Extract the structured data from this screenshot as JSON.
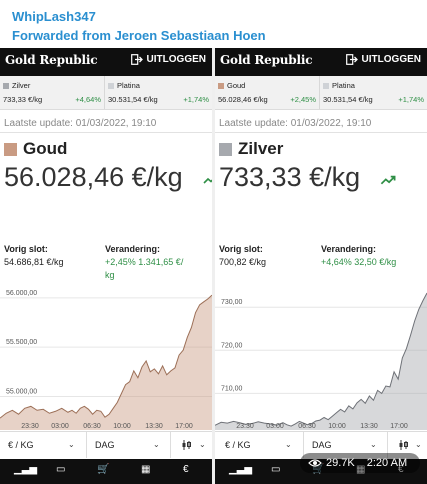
{
  "message": {
    "sender": "WhipLash347",
    "forwarded": "Forwarded from Jeroen Sebastiaan Hoen",
    "views": "29.7K",
    "time": "2:20 AM"
  },
  "app": {
    "logo": "Gold Republic",
    "logout": "UITLOGGEN"
  },
  "left": {
    "card1": {
      "name": "Zilver",
      "price": "733,33 €/kg",
      "change": "+4,64%",
      "color": "#a6a9ae"
    },
    "card2": {
      "name": "Platina",
      "price": "30.531,54 €/kg",
      "change": "+1,74%",
      "color": "#cfd2d6"
    },
    "update": "Laatste update:  01/03/2022, 19:10",
    "metal": "Goud",
    "metal_color": "#c99b83",
    "price": "56.028,46 €/kg",
    "prev_label": "Vorig slot:",
    "prev_value": "54.686,81 €/kg",
    "change_label": "Verandering:",
    "change_value": "+2,45% 1.341,65 €/",
    "change_value2": "kg",
    "chart_data": {
      "type": "area",
      "x_ticks": [
        "23:30",
        "03:00",
        "06:30",
        "10:00",
        "13:30",
        "17:00"
      ],
      "y_ticks": [
        "55.000,00",
        "55.500,00",
        "56.000,00"
      ],
      "ylim": [
        54660,
        56080
      ],
      "x": [
        0,
        0.6,
        1.2,
        1.8,
        2.4,
        3,
        3.6,
        4.2,
        4.8,
        5.4,
        6,
        6.6,
        7,
        7.4,
        7.8,
        8.2,
        8.6,
        9,
        9.4,
        9.8,
        10.2,
        10.6,
        11,
        11.4,
        11.8,
        12.2,
        12.6,
        13,
        13.4,
        13.8,
        14.2,
        14.6,
        15,
        15.4,
        15.8,
        16.2,
        16.6,
        17,
        17.4,
        17.8,
        18.2,
        18.6,
        19,
        19.4,
        19.8,
        20.2,
        20.6
      ],
      "values": [
        54780,
        54830,
        54860,
        54820,
        54880,
        54900,
        54860,
        54870,
        54830,
        54850,
        54880,
        54840,
        54860,
        54830,
        54880,
        54900,
        54870,
        54820,
        54860,
        54850,
        54790,
        54820,
        54880,
        54940,
        55030,
        55120,
        55150,
        55260,
        55190,
        55300,
        55360,
        55250,
        55280,
        55230,
        55310,
        55220,
        55260,
        55290,
        55420,
        55470,
        55600,
        55700,
        55850,
        55930,
        55960,
        55990,
        56028
      ],
      "color": "#c99b83"
    }
  },
  "right": {
    "card1": {
      "name": "Goud",
      "price": "56.028,46 €/kg",
      "change": "+2,45%",
      "color": "#c99b83"
    },
    "card2": {
      "name": "Platina",
      "price": "30.531,54 €/kg",
      "change": "+1,74%",
      "color": "#cfd2d6"
    },
    "update": "Laatste update:  01/03/2022, 19:10",
    "metal": "Zilver",
    "metal_color": "#a6a9ae",
    "price": "733,33 €/kg",
    "prev_label": "Vorig slot:",
    "prev_value": "700,82 €/kg",
    "change_label": "Verandering:",
    "change_value": "+4,64% 32,50 €/kg",
    "change_value2": "",
    "chart_data": {
      "type": "area",
      "x_ticks": [
        "23:30",
        "03:00",
        "06:30",
        "10:00",
        "13:30",
        "17:00"
      ],
      "y_ticks": [
        "710,00",
        "720,00",
        "730,00"
      ],
      "ylim": [
        701.5,
        734
      ],
      "x": [
        0,
        0.6,
        1.2,
        1.8,
        2.4,
        3,
        3.6,
        4.2,
        4.8,
        5.4,
        6,
        6.6,
        7,
        7.4,
        7.8,
        8.2,
        8.6,
        9,
        9.4,
        9.8,
        10.2,
        10.6,
        11,
        11.4,
        11.8,
        12.2,
        12.6,
        13,
        13.4,
        13.8,
        14.2,
        14.6,
        15,
        15.4,
        15.8,
        16.2,
        16.6,
        17,
        17.4,
        17.8,
        18.2,
        18.6,
        19,
        19.4,
        19.8,
        20.2,
        20.6
      ],
      "values": [
        702.6,
        703.3,
        703.1,
        703.5,
        703.2,
        702.8,
        703.0,
        703.4,
        703.1,
        702.9,
        702.6,
        703.2,
        702.7,
        702.4,
        702.9,
        703.5,
        703.1,
        702.7,
        703.0,
        703.6,
        703.8,
        704.4,
        703.9,
        704.7,
        705.5,
        706.3,
        705.7,
        707.1,
        706.4,
        707.8,
        708.6,
        707.7,
        709.4,
        708.4,
        710.7,
        710.0,
        711.7,
        711.5,
        715.0,
        713.3,
        718.2,
        720.4,
        723.5,
        726.8,
        729.5,
        731.5,
        733.3
      ],
      "color": "#a6a9ae"
    }
  },
  "controls": {
    "unit": "€ / KG",
    "period": "DAG"
  }
}
